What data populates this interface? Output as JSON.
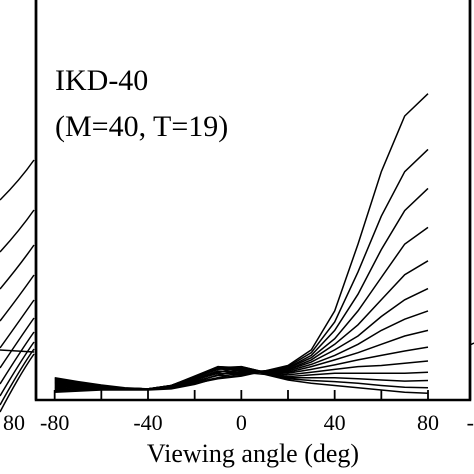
{
  "chart_data": {
    "type": "line",
    "title": "IKD-40",
    "subtitle": "(M=40, T=19)",
    "xlabel": "Viewing angle (deg)",
    "ylabel": "",
    "xlim": [
      -88,
      98
    ],
    "ylim": [
      0,
      6.5
    ],
    "grid": false,
    "legend": "none",
    "x_ticks": [
      -80,
      -40,
      0,
      40,
      80
    ],
    "x_tick_labels": [
      "-80",
      "-40",
      "0",
      "40",
      "80"
    ],
    "left_panel_tick_labels": [
      "80"
    ],
    "right_panel_tick_labels": [
      "-"
    ],
    "x": [
      -80,
      -70,
      -60,
      -50,
      -40,
      -30,
      -20,
      -10,
      0,
      10,
      20,
      30,
      40,
      50,
      60,
      70,
      80
    ],
    "series": [
      {
        "values": [
          0.4,
          0.33,
          0.27,
          0.22,
          0.2,
          0.22,
          0.3,
          0.38,
          0.43,
          0.52,
          0.62,
          0.9,
          1.6,
          2.8,
          4.1,
          5.1,
          5.5
        ]
      },
      {
        "values": [
          0.38,
          0.32,
          0.26,
          0.21,
          0.2,
          0.23,
          0.32,
          0.4,
          0.44,
          0.52,
          0.6,
          0.85,
          1.4,
          2.3,
          3.3,
          4.1,
          4.5
        ]
      },
      {
        "values": [
          0.36,
          0.31,
          0.26,
          0.21,
          0.2,
          0.24,
          0.34,
          0.44,
          0.46,
          0.52,
          0.58,
          0.8,
          1.25,
          1.9,
          2.7,
          3.4,
          3.8
        ]
      },
      {
        "values": [
          0.34,
          0.3,
          0.25,
          0.21,
          0.2,
          0.24,
          0.36,
          0.48,
          0.48,
          0.52,
          0.57,
          0.76,
          1.1,
          1.6,
          2.2,
          2.8,
          3.1
        ]
      },
      {
        "values": [
          0.32,
          0.29,
          0.25,
          0.21,
          0.2,
          0.25,
          0.38,
          0.52,
          0.5,
          0.52,
          0.55,
          0.72,
          1.0,
          1.35,
          1.8,
          2.25,
          2.5
        ]
      },
      {
        "values": [
          0.3,
          0.28,
          0.24,
          0.21,
          0.2,
          0.25,
          0.4,
          0.56,
          0.52,
          0.52,
          0.54,
          0.68,
          0.9,
          1.15,
          1.5,
          1.8,
          2.0
        ]
      },
      {
        "values": [
          0.28,
          0.27,
          0.24,
          0.21,
          0.2,
          0.26,
          0.41,
          0.58,
          0.54,
          0.51,
          0.52,
          0.64,
          0.8,
          1.0,
          1.25,
          1.45,
          1.6
        ]
      },
      {
        "values": [
          0.26,
          0.26,
          0.23,
          0.21,
          0.2,
          0.26,
          0.42,
          0.6,
          0.56,
          0.5,
          0.5,
          0.6,
          0.72,
          0.85,
          1.0,
          1.15,
          1.25
        ]
      },
      {
        "values": [
          0.24,
          0.25,
          0.23,
          0.21,
          0.2,
          0.26,
          0.43,
          0.6,
          0.58,
          0.5,
          0.48,
          0.55,
          0.63,
          0.72,
          0.8,
          0.88,
          0.95
        ]
      },
      {
        "values": [
          0.22,
          0.24,
          0.22,
          0.2,
          0.2,
          0.26,
          0.42,
          0.58,
          0.6,
          0.5,
          0.45,
          0.5,
          0.55,
          0.6,
          0.62,
          0.66,
          0.7
        ]
      },
      {
        "values": [
          0.2,
          0.22,
          0.21,
          0.2,
          0.2,
          0.25,
          0.4,
          0.55,
          0.6,
          0.5,
          0.42,
          0.45,
          0.48,
          0.48,
          0.48,
          0.48,
          0.5
        ]
      },
      {
        "values": [
          0.18,
          0.2,
          0.2,
          0.19,
          0.19,
          0.24,
          0.36,
          0.5,
          0.58,
          0.5,
          0.4,
          0.4,
          0.4,
          0.38,
          0.36,
          0.34,
          0.35
        ]
      },
      {
        "values": [
          0.16,
          0.18,
          0.19,
          0.19,
          0.19,
          0.22,
          0.32,
          0.45,
          0.55,
          0.48,
          0.38,
          0.35,
          0.33,
          0.3,
          0.26,
          0.23,
          0.22
        ]
      },
      {
        "values": [
          0.14,
          0.16,
          0.18,
          0.18,
          0.18,
          0.2,
          0.28,
          0.4,
          0.5,
          0.46,
          0.36,
          0.3,
          0.26,
          0.22,
          0.18,
          0.14,
          0.12
        ]
      }
    ]
  }
}
